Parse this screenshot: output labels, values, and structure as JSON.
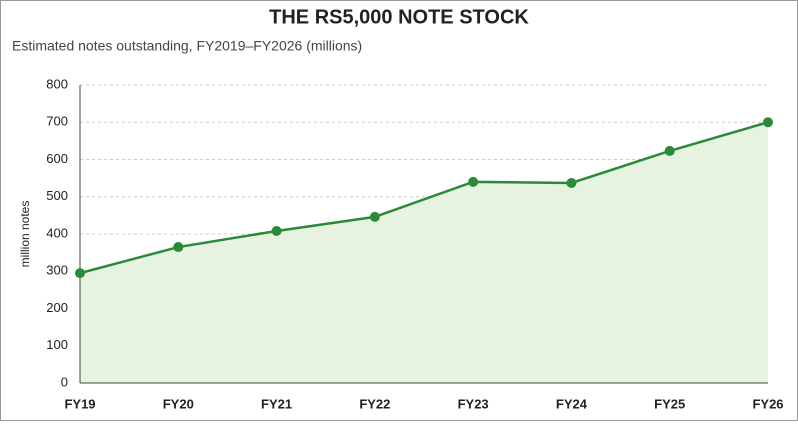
{
  "chart_data": {
    "type": "line",
    "title": "THE RS5,000 NOTE STOCK",
    "subtitle": "Estimated notes outstanding, FY2019–FY2026 (millions)",
    "y_label": "million notes",
    "categories": [
      "FY19",
      "FY20",
      "FY21",
      "FY22",
      "FY23",
      "FY24",
      "FY25",
      "FY26"
    ],
    "values": [
      295,
      365,
      408,
      446,
      540,
      537,
      623,
      700
    ],
    "color": "#2a8a3a",
    "area_color": "#e5f3e0",
    "ylim": [
      0,
      800
    ],
    "yticks": [
      0,
      100,
      200,
      300,
      400,
      500,
      600,
      700,
      800
    ],
    "grid": true
  }
}
